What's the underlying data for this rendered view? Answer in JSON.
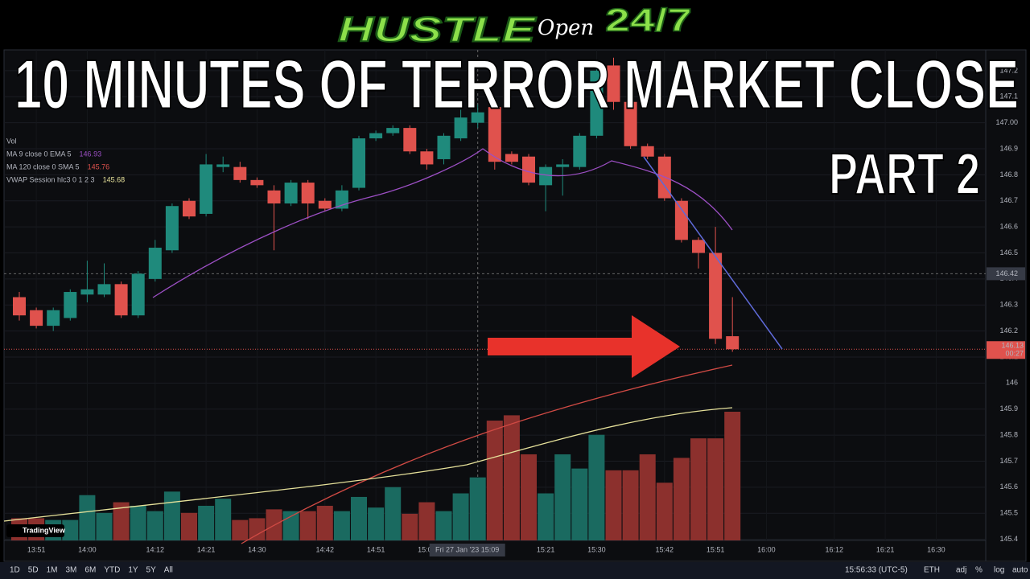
{
  "chart_data": {
    "type": "candlestick",
    "logo": {
      "brand": "HUSTLE",
      "script": "Open",
      "hours": "24/7"
    },
    "title": "10 MINUTES OF TERROR MARKET CLOSE",
    "subtitle": "PART 2",
    "legend": [
      {
        "name": "Vol"
      },
      {
        "name": "MA 9 close 0 EMA 5",
        "value": 146.93
      },
      {
        "name": "MA 120 close 0 SMA 5",
        "value": 145.76
      },
      {
        "name": "VWAP Session hlc3 0 1 2 3",
        "value": 145.68
      }
    ],
    "x": [
      "13:48",
      "13:51",
      "13:54",
      "13:57",
      "14:00",
      "14:03",
      "14:06",
      "14:09",
      "14:12",
      "14:15",
      "14:18",
      "14:21",
      "14:24",
      "14:27",
      "14:30",
      "14:33",
      "14:36",
      "14:39",
      "14:42",
      "14:45",
      "14:48",
      "14:51",
      "14:54",
      "14:57",
      "15:00",
      "15:03",
      "15:06",
      "15:09",
      "15:12",
      "15:15",
      "15:18",
      "15:21",
      "15:24",
      "15:27",
      "15:30",
      "15:33",
      "15:36",
      "15:39",
      "15:42",
      "15:45",
      "15:48",
      "15:51",
      "15:54"
    ],
    "open": [
      146.33,
      146.28,
      146.22,
      146.25,
      146.34,
      146.34,
      146.38,
      146.26,
      146.4,
      146.51,
      146.7,
      146.65,
      146.83,
      146.83,
      146.78,
      146.74,
      146.69,
      146.77,
      146.7,
      146.67,
      146.75,
      146.94,
      146.96,
      146.98,
      146.89,
      146.86,
      146.94,
      147.0,
      147.06,
      146.88,
      146.87,
      146.76,
      146.83,
      146.83,
      146.95,
      147.22,
      147.08,
      146.91,
      146.87,
      146.7,
      146.55,
      146.5,
      146.18
    ],
    "high": [
      146.35,
      146.29,
      146.29,
      146.36,
      146.47,
      146.46,
      146.39,
      146.43,
      146.55,
      146.69,
      146.71,
      146.88,
      146.87,
      146.85,
      146.79,
      146.76,
      146.78,
      146.78,
      146.71,
      146.76,
      146.95,
      146.97,
      146.99,
      146.99,
      146.9,
      146.96,
      147.05,
      147.07,
      147.07,
      146.89,
      146.88,
      146.84,
      146.86,
      146.96,
      147.23,
      147.25,
      147.12,
      146.92,
      146.88,
      146.71,
      146.56,
      146.6,
      146.33
    ],
    "low": [
      146.24,
      146.21,
      146.2,
      146.24,
      146.31,
      146.33,
      146.25,
      146.25,
      146.39,
      146.5,
      146.63,
      146.64,
      146.81,
      146.77,
      146.75,
      146.51,
      146.68,
      146.63,
      146.66,
      146.66,
      146.74,
      146.93,
      146.95,
      146.88,
      146.82,
      146.84,
      146.93,
      146.98,
      146.82,
      146.84,
      146.76,
      146.66,
      146.72,
      146.82,
      146.94,
      147.05,
      146.9,
      146.86,
      146.7,
      146.54,
      146.44,
      146.15,
      146.12
    ],
    "close": [
      146.26,
      146.22,
      146.28,
      146.35,
      146.36,
      146.38,
      146.26,
      146.42,
      146.52,
      146.68,
      146.64,
      146.84,
      146.84,
      146.78,
      146.76,
      146.69,
      146.77,
      146.69,
      146.67,
      146.74,
      146.94,
      146.96,
      146.98,
      146.89,
      146.84,
      146.95,
      147.02,
      147.04,
      146.85,
      146.85,
      146.77,
      146.83,
      146.84,
      146.95,
      147.2,
      147.08,
      146.91,
      146.87,
      146.71,
      146.55,
      146.5,
      146.17,
      146.13
    ],
    "volume": [
      25,
      25,
      23,
      23,
      51,
      31,
      43,
      39,
      33,
      55,
      31,
      39,
      47,
      23,
      25,
      35,
      33,
      33,
      39,
      33,
      49,
      37,
      60,
      30,
      43,
      33,
      53,
      71,
      135,
      141,
      97,
      53,
      97,
      81,
      119,
      79,
      79,
      97,
      65,
      93,
      115,
      115,
      145
    ],
    "up_color": "#1f8a7c",
    "down_color": "#e0524d",
    "up_volume_color": "#1a6a60",
    "down_volume_color": "#8c302d",
    "ylim": [
      145.34,
      147.28
    ],
    "yticks": [
      145.4,
      145.5,
      145.6,
      145.7,
      145.8,
      145.9,
      146.0,
      146.1,
      146.2,
      146.3,
      146.4,
      146.5,
      146.6,
      146.7,
      146.8,
      146.9,
      {
        "value": 147.0,
        "label": "147.00"
      },
      147.1,
      147.2
    ],
    "xticks": [
      "13:51",
      "14:00",
      "14:12",
      "14:21",
      "14:30",
      "14:42",
      "14:51",
      "15:00",
      "15:21",
      "15:30",
      "15:42",
      "15:51",
      "16:00",
      "16:12",
      "16:21",
      "16:30"
    ],
    "crosshair_x": {
      "value": "15:09",
      "label": "Fri 27 Jan '23 15:09"
    },
    "crosshair_price": {
      "value": 146.42,
      "label": "146.42"
    },
    "last_price": {
      "value": 146.13,
      "label": "146.13",
      "countdown": "00:27"
    },
    "toolbar": {
      "ranges": [
        "1D",
        "5D",
        "1M",
        "3M",
        "6M",
        "YTD",
        "1Y",
        "5Y",
        "All"
      ],
      "clock": "15:56:33 (UTC-5)",
      "options": [
        "ETH",
        "adj",
        "%",
        "log",
        "auto"
      ],
      "brand": "TradingView"
    }
  }
}
